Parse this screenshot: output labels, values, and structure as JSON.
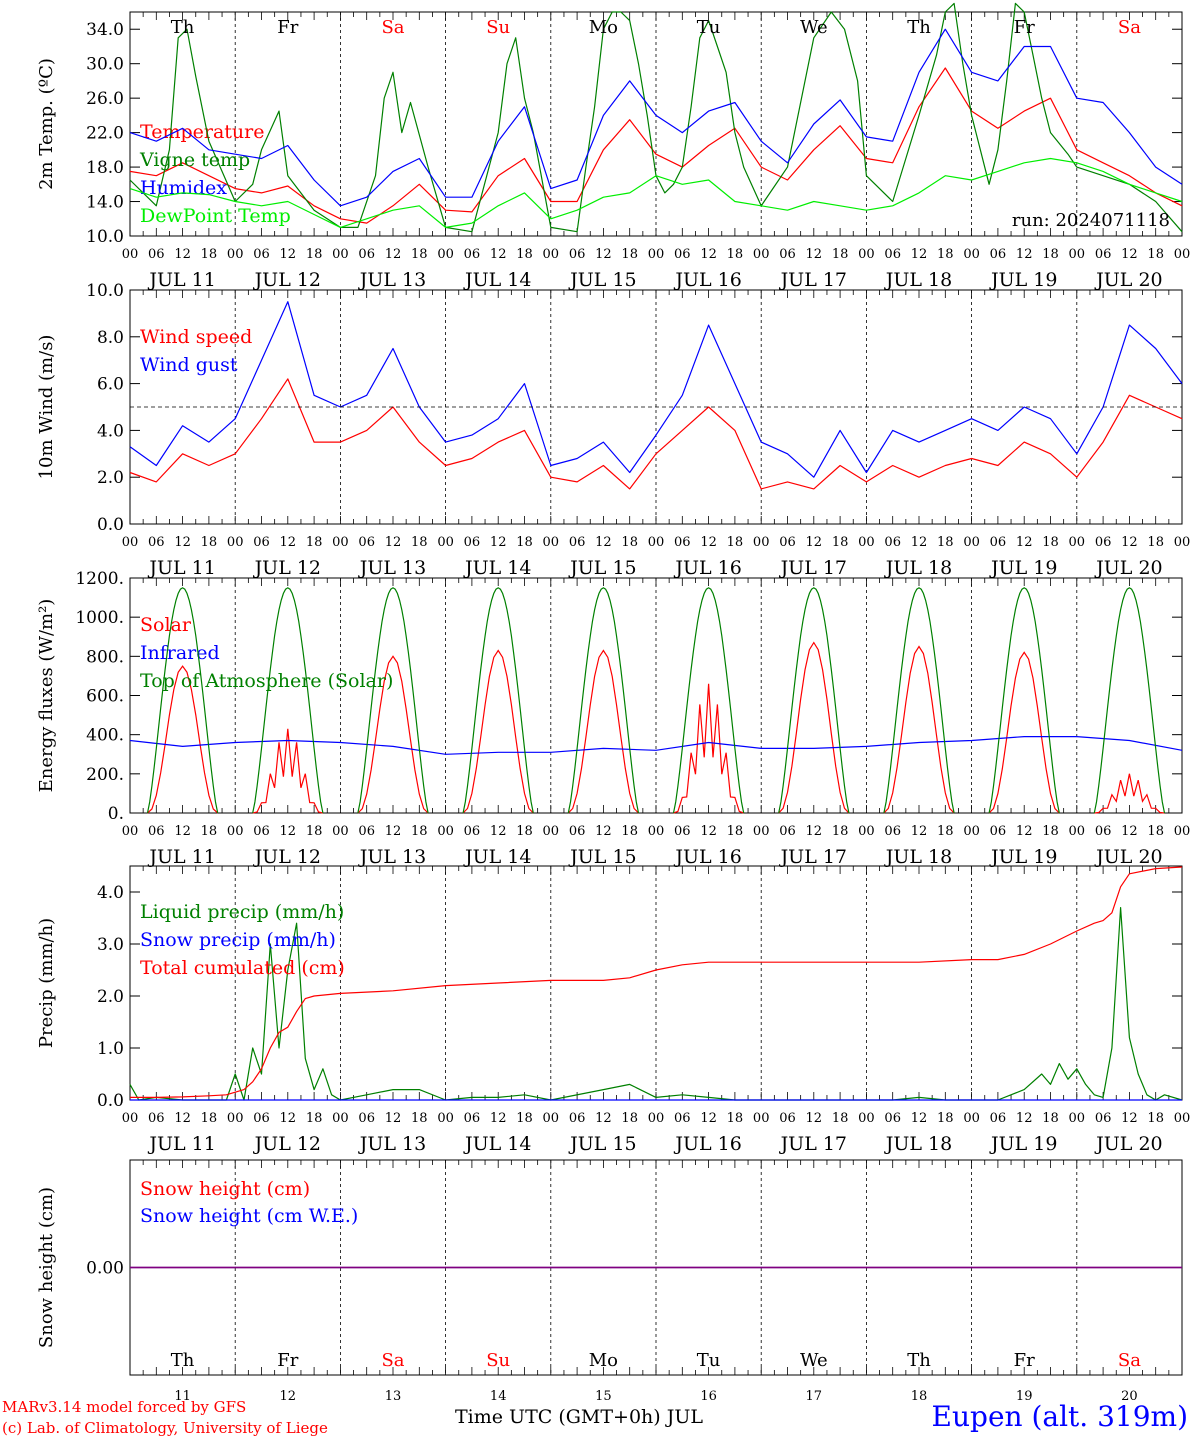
{
  "run_label": "run: 2024071118",
  "colors": {
    "red": "#ff0000",
    "green": "#008000",
    "blue": "#0000ff",
    "lightgreen": "#00ee00",
    "purple": "#800080",
    "black": "#000000"
  },
  "days": {
    "weekday": [
      "Th",
      "Fr",
      "Sa",
      "Su",
      "Mo",
      "Tu",
      "We",
      "Th",
      "Fr",
      "Sa"
    ],
    "weekend": [
      false,
      false,
      true,
      true,
      false,
      false,
      false,
      false,
      false,
      true
    ],
    "date_labels": [
      "JUL 11",
      "JUL 12",
      "JUL 13",
      "JUL 14",
      "JUL 15",
      "JUL 16",
      "JUL 17",
      "JUL 18",
      "JUL 19",
      "JUL 20"
    ],
    "day_numbers": [
      "11",
      "12",
      "13",
      "14",
      "15",
      "16",
      "17",
      "18",
      "19",
      "20"
    ],
    "hour_labels": [
      "00",
      "06",
      "12",
      "18"
    ],
    "last_hour_label": "00"
  },
  "footer": {
    "credit1": "MARv3.14 model forced by GFS",
    "credit2": "(c) Lab. of Climatology, University of Liege",
    "x_title": "Time UTC (GMT+0h) JUL",
    "station": "Eupen (alt. 319m)"
  },
  "chart_data": [
    {
      "type": "line",
      "ylabel": "2m Temp. (ºC)",
      "ylim": [
        10,
        36
      ],
      "yticks": [
        "10.0",
        "14.0",
        "18.0",
        "22.0",
        "26.0",
        "30.0",
        "34.0"
      ],
      "x_unit": "hours since JUL 11 00 UTC",
      "series": [
        {
          "name": "Temperature",
          "color": "red",
          "x": [
            0,
            6,
            12,
            18,
            24,
            30,
            36,
            42,
            48,
            54,
            60,
            66,
            72,
            78,
            84,
            90,
            96,
            102,
            108,
            114,
            120,
            126,
            132,
            138,
            144,
            150,
            156,
            162,
            168,
            174,
            180,
            186,
            192,
            198,
            204,
            210,
            216,
            222,
            228,
            234,
            240
          ],
          "values": [
            17.5,
            17.0,
            18.5,
            17.0,
            15.5,
            15.0,
            15.8,
            13.5,
            12.0,
            11.5,
            13.5,
            16.0,
            13.0,
            12.8,
            17.0,
            19.0,
            14.0,
            14.0,
            20.0,
            23.5,
            19.5,
            18.0,
            20.5,
            22.5,
            18.0,
            16.5,
            20.0,
            22.8,
            19.0,
            18.5,
            25.0,
            29.5,
            24.5,
            22.5,
            24.5,
            26.0,
            20.0,
            18.5,
            17.0,
            15.0,
            13.5
          ]
        },
        {
          "name": "Vigne temp",
          "color": "green",
          "x": [
            0,
            6,
            9,
            11,
            13,
            15,
            18,
            24,
            28,
            30,
            34,
            36,
            42,
            48,
            52,
            56,
            58,
            60,
            62,
            64,
            68,
            72,
            78,
            84,
            86,
            88,
            90,
            92,
            96,
            102,
            104,
            106,
            108,
            110,
            112,
            114,
            116,
            118,
            120,
            122,
            124,
            126,
            128,
            130,
            132,
            134,
            136,
            138,
            140,
            144,
            150,
            156,
            160,
            163,
            166,
            168,
            174,
            180,
            184,
            186,
            188,
            190,
            192,
            196,
            198,
            200,
            202,
            204,
            206,
            208,
            210,
            214,
            216,
            222,
            228,
            234,
            240
          ],
          "values": [
            16.5,
            13.5,
            20.0,
            33.0,
            34.0,
            28.5,
            21.0,
            14.0,
            16.0,
            20.0,
            24.5,
            17.0,
            13.0,
            11.0,
            11.0,
            17.0,
            26.0,
            29.0,
            22.0,
            25.5,
            18.0,
            11.0,
            10.5,
            22.0,
            30.0,
            33.0,
            26.0,
            22.0,
            11.0,
            10.5,
            18.0,
            25.0,
            34.0,
            36.0,
            36.0,
            35.0,
            30.0,
            24.0,
            17.0,
            15.0,
            16.0,
            18.0,
            25.0,
            33.0,
            35.0,
            32.0,
            29.0,
            22.0,
            18.0,
            13.5,
            18.0,
            33.0,
            36.0,
            34.0,
            28.0,
            17.0,
            14.0,
            24.0,
            31.0,
            36.0,
            37.0,
            30.0,
            24.0,
            16.0,
            20.0,
            28.0,
            37.0,
            36.0,
            31.0,
            26.0,
            22.0,
            19.5,
            18.0,
            17.0,
            16.0,
            14.0,
            10.5
          ]
        },
        {
          "name": "Humidex",
          "color": "blue",
          "x": [
            0,
            6,
            12,
            18,
            24,
            30,
            36,
            42,
            48,
            54,
            60,
            66,
            72,
            78,
            84,
            90,
            96,
            102,
            108,
            114,
            120,
            126,
            132,
            138,
            144,
            150,
            156,
            162,
            168,
            174,
            180,
            186,
            192,
            198,
            204,
            210,
            216,
            222,
            228,
            234,
            240
          ],
          "values": [
            22.0,
            21.0,
            22.5,
            20.0,
            19.5,
            19.0,
            20.5,
            16.5,
            13.5,
            14.5,
            17.5,
            19.0,
            14.5,
            14.5,
            21.0,
            25.0,
            15.5,
            16.5,
            24.0,
            28.0,
            24.0,
            22.0,
            24.5,
            25.5,
            21.0,
            18.5,
            23.0,
            25.8,
            21.5,
            21.0,
            29.0,
            34.0,
            29.0,
            28.0,
            32.0,
            32.0,
            26.0,
            25.5,
            22.0,
            18.0,
            16.0
          ]
        },
        {
          "name": "DewPoint Temp",
          "color": "lightgreen",
          "x": [
            0,
            6,
            12,
            18,
            24,
            30,
            36,
            42,
            48,
            54,
            60,
            66,
            72,
            78,
            84,
            90,
            96,
            102,
            108,
            114,
            120,
            126,
            132,
            138,
            144,
            150,
            156,
            162,
            168,
            174,
            180,
            186,
            192,
            198,
            204,
            210,
            216,
            222,
            228,
            234,
            240
          ],
          "values": [
            15.5,
            14.5,
            15.0,
            14.8,
            14.0,
            13.5,
            14.0,
            12.5,
            11.0,
            12.0,
            13.0,
            13.5,
            11.0,
            11.5,
            13.5,
            15.0,
            12.0,
            13.0,
            14.5,
            15.0,
            17.0,
            16.0,
            16.5,
            14.0,
            13.5,
            13.0,
            14.0,
            13.5,
            13.0,
            13.5,
            15.0,
            17.0,
            16.5,
            17.5,
            18.5,
            19.0,
            18.5,
            17.5,
            16.0,
            15.0,
            14.0
          ]
        }
      ]
    },
    {
      "type": "line",
      "ylabel": "10m Wind (m/s)",
      "ylim": [
        0,
        10
      ],
      "yticks": [
        "0.0",
        "2.0",
        "4.0",
        "6.0",
        "8.0",
        "10.0"
      ],
      "reference_line": 5,
      "x_unit": "hours since JUL 11 00 UTC",
      "series": [
        {
          "name": "Wind speed",
          "color": "red",
          "x": [
            0,
            6,
            12,
            18,
            24,
            30,
            36,
            42,
            48,
            54,
            60,
            66,
            72,
            78,
            84,
            90,
            96,
            102,
            108,
            114,
            120,
            126,
            132,
            138,
            144,
            150,
            156,
            162,
            168,
            174,
            180,
            186,
            192,
            198,
            204,
            210,
            216,
            222,
            228,
            234,
            240
          ],
          "values": [
            2.2,
            1.8,
            3.0,
            2.5,
            3.0,
            4.5,
            6.2,
            3.5,
            3.5,
            4.0,
            5.0,
            3.5,
            2.5,
            2.8,
            3.5,
            4.0,
            2.0,
            1.8,
            2.5,
            1.5,
            3.0,
            4.0,
            5.0,
            4.0,
            1.5,
            1.8,
            1.5,
            2.5,
            1.8,
            2.5,
            2.0,
            2.5,
            2.8,
            2.5,
            3.5,
            3.0,
            2.0,
            3.5,
            5.5,
            5.0,
            4.5
          ]
        },
        {
          "name": "Wind gust",
          "color": "blue",
          "x": [
            0,
            6,
            12,
            18,
            24,
            30,
            36,
            42,
            48,
            54,
            60,
            66,
            72,
            78,
            84,
            90,
            96,
            102,
            108,
            114,
            120,
            126,
            132,
            138,
            144,
            150,
            156,
            162,
            168,
            174,
            180,
            186,
            192,
            198,
            204,
            210,
            216,
            222,
            228,
            234,
            240
          ],
          "values": [
            3.3,
            2.5,
            4.2,
            3.5,
            4.5,
            7.0,
            9.5,
            5.5,
            5.0,
            5.5,
            7.5,
            5.0,
            3.5,
            3.8,
            4.5,
            6.0,
            2.5,
            2.8,
            3.5,
            2.2,
            3.8,
            5.5,
            8.5,
            6.0,
            3.5,
            3.0,
            2.0,
            4.0,
            2.2,
            4.0,
            3.5,
            4.0,
            4.5,
            4.0,
            5.0,
            4.5,
            3.0,
            5.0,
            8.5,
            7.5,
            6.0
          ]
        }
      ]
    },
    {
      "type": "line",
      "ylabel": "Energy fluxes (W/m²)",
      "ylim": [
        0,
        1200
      ],
      "yticks": [
        "0.",
        "200.",
        "400.",
        "600.",
        "800.",
        "1000.",
        "1200."
      ],
      "x_unit": "hours since JUL 11 00 UTC",
      "series": [
        {
          "name": "Solar",
          "color": "red",
          "day_peaks": [
            750,
            430,
            800,
            830,
            830,
            660,
            870,
            850,
            820,
            200
          ]
        },
        {
          "name": "Infrared",
          "color": "blue",
          "x": [
            0,
            12,
            24,
            36,
            48,
            60,
            72,
            84,
            96,
            108,
            120,
            132,
            144,
            156,
            168,
            180,
            192,
            204,
            216,
            228,
            240
          ],
          "values": [
            370,
            340,
            360,
            370,
            360,
            340,
            300,
            310,
            310,
            330,
            320,
            360,
            330,
            330,
            340,
            360,
            370,
            390,
            390,
            370,
            320
          ]
        },
        {
          "name": "Top of Atmosphere (Solar)",
          "color": "green",
          "daily_peak": 1150
        }
      ]
    },
    {
      "type": "line",
      "ylabel": "Precip (mm/h)",
      "ylim": [
        0,
        4.5
      ],
      "yticks": [
        "0.0",
        "1.0",
        "2.0",
        "3.0",
        "4.0"
      ],
      "x_unit": "hours since JUL 11 00 UTC",
      "series": [
        {
          "name": "Liquid precip (mm/h)",
          "color": "green",
          "x": [
            0,
            2,
            6,
            12,
            18,
            22,
            24,
            26,
            28,
            30,
            32,
            34,
            36,
            38,
            40,
            42,
            44,
            46,
            48,
            54,
            60,
            66,
            72,
            78,
            84,
            90,
            96,
            108,
            114,
            120,
            126,
            132,
            138,
            144,
            150,
            156,
            162,
            168,
            174,
            180,
            186,
            192,
            198,
            204,
            208,
            210,
            212,
            214,
            216,
            218,
            220,
            222,
            224,
            226,
            228,
            230,
            232,
            234,
            236,
            240
          ],
          "values": [
            0.3,
            0,
            0.05,
            0,
            0,
            0,
            0.5,
            0,
            1.0,
            0.5,
            3.0,
            1.0,
            2.5,
            3.4,
            0.8,
            0.2,
            0.6,
            0.1,
            0,
            0.1,
            0.2,
            0.2,
            0,
            0.05,
            0.05,
            0.1,
            0,
            0.2,
            0.3,
            0.05,
            0.1,
            0.05,
            0,
            0,
            0,
            0,
            0,
            0,
            0,
            0.05,
            0,
            0,
            0,
            0.2,
            0.5,
            0.3,
            0.7,
            0.4,
            0.6,
            0.3,
            0.1,
            0.05,
            1.0,
            3.7,
            1.2,
            0.5,
            0.1,
            0,
            0.1,
            0
          ]
        },
        {
          "name": "Snow precip (mm/h)",
          "color": "blue",
          "x": [
            0,
            240
          ],
          "values": [
            0,
            0
          ]
        },
        {
          "name": "Total cumulated (cm)",
          "color": "red",
          "x": [
            0,
            6,
            12,
            18,
            22,
            24,
            26,
            28,
            30,
            32,
            34,
            36,
            38,
            40,
            42,
            48,
            60,
            72,
            84,
            96,
            108,
            114,
            120,
            126,
            132,
            144,
            156,
            168,
            180,
            192,
            198,
            204,
            210,
            216,
            220,
            222,
            224,
            226,
            228,
            234,
            240
          ],
          "values": [
            0.05,
            0.05,
            0.06,
            0.08,
            0.1,
            0.15,
            0.2,
            0.35,
            0.6,
            1.0,
            1.3,
            1.4,
            1.7,
            1.95,
            2.0,
            2.05,
            2.1,
            2.2,
            2.25,
            2.3,
            2.3,
            2.35,
            2.5,
            2.6,
            2.65,
            2.65,
            2.65,
            2.65,
            2.65,
            2.7,
            2.7,
            2.8,
            3.0,
            3.25,
            3.4,
            3.45,
            3.6,
            4.1,
            4.35,
            4.45,
            4.48
          ]
        }
      ]
    },
    {
      "type": "line",
      "ylabel": "Snow height (cm)",
      "ylim": [
        -1,
        1
      ],
      "yticks": [
        "0.00"
      ],
      "x_unit": "hours since JUL 11 00 UTC",
      "series": [
        {
          "name": "Snow height (cm)",
          "color": "red",
          "x": [
            0,
            240
          ],
          "values": [
            0,
            0
          ]
        },
        {
          "name": "Snow height (cm W.E.)",
          "color": "blue",
          "x": [
            0,
            240
          ],
          "values": [
            0,
            0
          ]
        }
      ]
    }
  ]
}
